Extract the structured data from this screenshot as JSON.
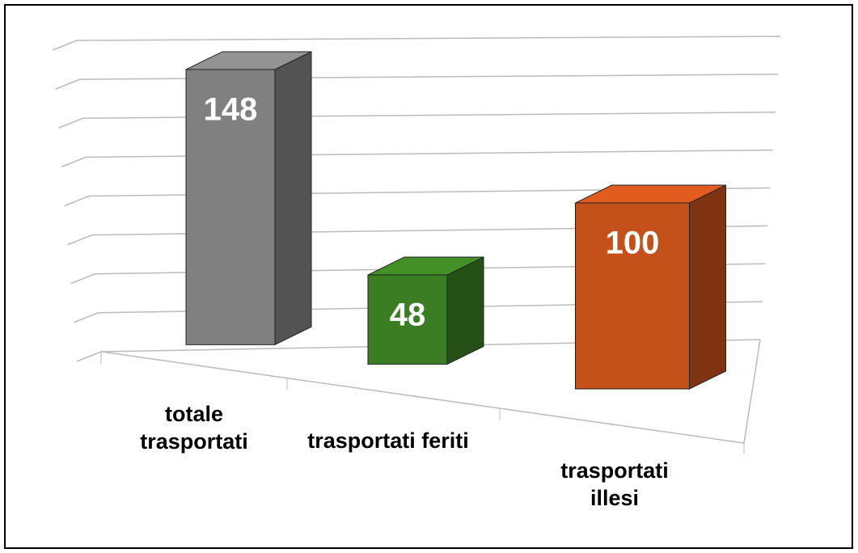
{
  "chart_data": {
    "type": "bar3d",
    "categories": [
      "totale trasportati",
      "trasportati feriti",
      "trasportati illesi"
    ],
    "values": [
      148,
      48,
      100
    ],
    "colors": [
      "#808080",
      "#3a7d22",
      "#c4501a"
    ],
    "ylim": [
      0,
      160
    ],
    "yticks": [
      0,
      20,
      40,
      60,
      80,
      100,
      120,
      140,
      160
    ],
    "grid": true
  }
}
